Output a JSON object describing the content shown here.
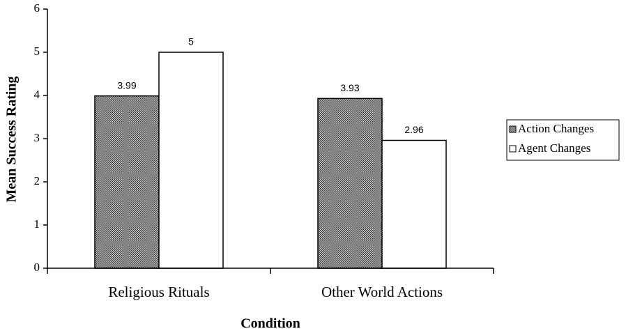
{
  "chart_data": {
    "type": "bar",
    "x_label": "Condition",
    "y_label": "Mean Success Rating",
    "categories": [
      "Religious Rituals",
      "Other World Actions"
    ],
    "series": [
      {
        "name": "Action Changes",
        "color": "#5a5a5a",
        "pattern": "hatched",
        "values": [
          3.99,
          3.93
        ]
      },
      {
        "name": "Agent Changes",
        "color": "#ffffff",
        "values": [
          5,
          2.96
        ]
      }
    ],
    "ylim": [
      0,
      6
    ],
    "yticks": [
      0,
      1,
      2,
      3,
      4,
      5,
      6
    ],
    "grid": false,
    "legend": "right"
  }
}
